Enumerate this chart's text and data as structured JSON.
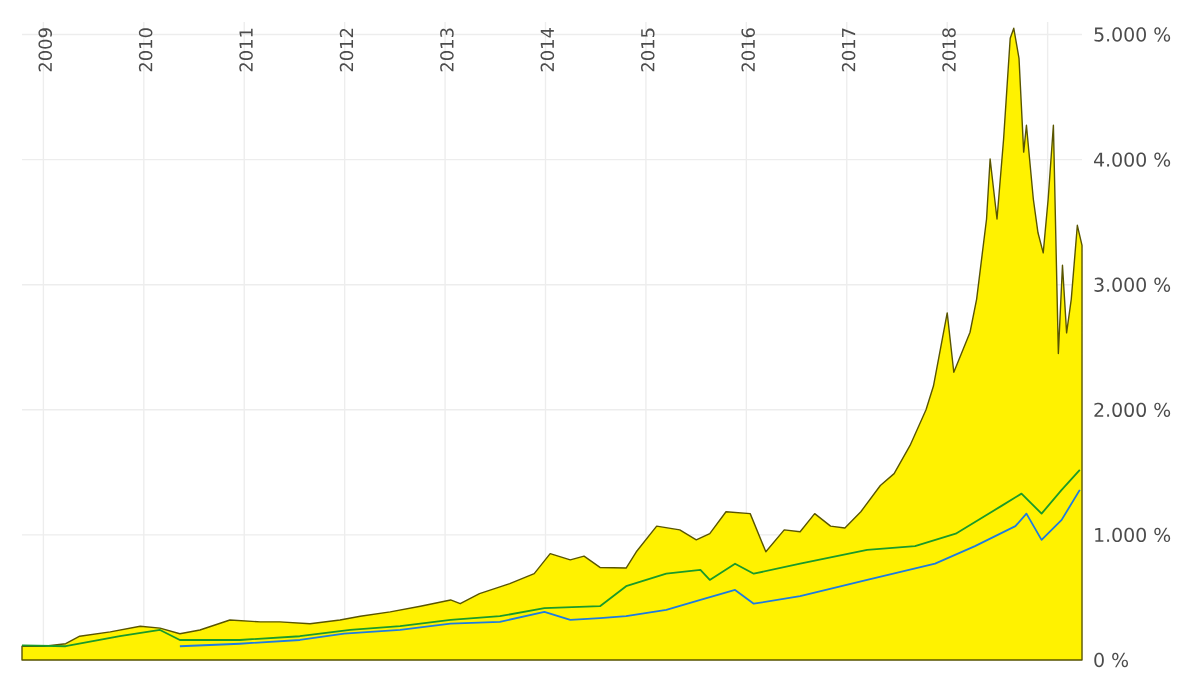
{
  "chart_data": {
    "type": "area",
    "xlim": [
      "2008-10-15",
      "2019-05-06"
    ],
    "ylim": [
      0,
      5100
    ],
    "xticks": [
      {
        "value": "2009",
        "label": "2009"
      },
      {
        "value": "2010",
        "label": "2010"
      },
      {
        "value": "2011",
        "label": "2011"
      },
      {
        "value": "2012",
        "label": "2012"
      },
      {
        "value": "2013",
        "label": "2013"
      },
      {
        "value": "2014",
        "label": "2014"
      },
      {
        "value": "2015",
        "label": "2015"
      },
      {
        "value": "2016",
        "label": "2016"
      },
      {
        "value": "2017",
        "label": "2017"
      },
      {
        "value": "2018",
        "label": "2018"
      },
      {
        "value": "2019",
        "label": null
      }
    ],
    "yticks": [
      {
        "value": 0,
        "label": "0 %"
      },
      {
        "value": 1000,
        "label": "1.000 %"
      },
      {
        "value": 2000,
        "label": "2.000 %"
      },
      {
        "value": 3000,
        "label": "3.000 %"
      },
      {
        "value": 4000,
        "label": "4.000 %"
      },
      {
        "value": 5000,
        "label": "5.000 %"
      }
    ],
    "grid": true,
    "series": [
      {
        "color": "#fff200",
        "x": [
          "2008-10-15",
          "2009-01-04",
          "2009-03-23",
          "2009-05-13",
          "2009-09-01",
          "2009-12-19",
          "2010-03-01",
          "2010-05-12",
          "2010-07-24",
          "2010-11-10",
          "2011-02-28",
          "2011-05-10",
          "2011-08-28",
          "2011-12-15",
          "2012-02-27",
          "2012-06-15",
          "2012-10-03",
          "2013-01-21",
          "2013-02-25",
          "2013-05-06",
          "2013-08-24",
          "2013-11-21",
          "2014-01-18",
          "2014-04-01",
          "2014-05-21",
          "2014-07-18",
          "2014-10-21",
          "2014-11-27",
          "2015-02-09",
          "2015-05-04",
          "2015-07-03",
          "2015-08-21",
          "2015-10-19",
          "2016-01-15",
          "2016-03-12",
          "2016-05-18",
          "2016-07-15",
          "2016-09-06",
          "2016-11-03",
          "2016-12-25",
          "2017-02-21",
          "2017-05-03",
          "2017-06-22",
          "2017-08-19",
          "2017-10-16",
          "2017-11-12",
          "2018-01-01",
          "2018-01-25",
          "2018-03-25",
          "2018-04-18",
          "2018-05-24",
          "2018-06-06",
          "2018-07-01",
          "2018-07-25",
          "2018-08-18",
          "2018-08-31",
          "2018-09-19",
          "2018-10-06",
          "2018-10-16",
          "2018-11-10",
          "2018-11-27",
          "2018-12-16",
          "2019-01-03",
          "2019-01-22",
          "2019-02-09",
          "2019-02-24",
          "2019-03-11",
          "2019-03-28",
          "2019-04-19",
          "2019-05-06"
        ],
        "values": [
          110,
          110,
          130,
          190,
          225,
          270,
          255,
          210,
          240,
          320,
          305,
          305,
          290,
          320,
          350,
          385,
          430,
          480,
          450,
          530,
          610,
          690,
          850,
          800,
          830,
          740,
          735,
          865,
          1070,
          1040,
          960,
          1010,
          1185,
          1170,
          865,
          1040,
          1025,
          1170,
          1070,
          1055,
          1185,
          1395,
          1490,
          1715,
          2000,
          2190,
          2775,
          2300,
          2620,
          2885,
          3525,
          4005,
          3525,
          4165,
          4970,
          5050,
          4810,
          4060,
          4275,
          3685,
          3415,
          3255,
          3685,
          4275,
          2450,
          3155,
          2615,
          2885,
          3475,
          3315
        ]
      },
      {
        "type": "line",
        "color": "#1a9a2a",
        "x": [
          "2008-10-15",
          "2009-03-23",
          "2009-10-06",
          "2010-03-01",
          "2010-05-12",
          "2010-12-16",
          "2011-07-22",
          "2012-01-21",
          "2012-07-21",
          "2013-01-21",
          "2013-07-19",
          "2013-12-28",
          "2014-07-18",
          "2014-10-21",
          "2015-03-16",
          "2015-07-18",
          "2015-08-21",
          "2015-11-21",
          "2016-01-28",
          "2016-07-15",
          "2017-03-16",
          "2017-09-06",
          "2018-02-01",
          "2018-07-16",
          "2018-09-28",
          "2018-12-10",
          "2019-02-21",
          "2019-04-28"
        ],
        "values": [
          117,
          110,
          190,
          240,
          160,
          160,
          190,
          240,
          270,
          320,
          350,
          415,
          430,
          590,
          690,
          720,
          640,
          770,
          690,
          770,
          880,
          910,
          1010,
          1230,
          1330,
          1170,
          1360,
          1520
        ]
      },
      {
        "type": "line",
        "color": "#1e7be0",
        "x": [
          "2010-05-12",
          "2010-12-16",
          "2011-07-22",
          "2011-12-30",
          "2012-07-21",
          "2013-01-21",
          "2013-07-19",
          "2013-12-28",
          "2014-04-01",
          "2014-07-18",
          "2014-10-21",
          "2015-03-16",
          "2015-07-18",
          "2015-11-21",
          "2016-01-28",
          "2016-07-15",
          "2017-03-16",
          "2017-11-18",
          "2018-04-12",
          "2018-09-06",
          "2018-10-16",
          "2018-12-10",
          "2019-02-21",
          "2019-04-28"
        ],
        "values": [
          110,
          130,
          160,
          210,
          240,
          290,
          305,
          385,
          320,
          335,
          350,
          400,
          480,
          560,
          450,
          510,
          640,
          770,
          910,
          1070,
          1170,
          960,
          1120,
          1360
        ]
      }
    ]
  }
}
